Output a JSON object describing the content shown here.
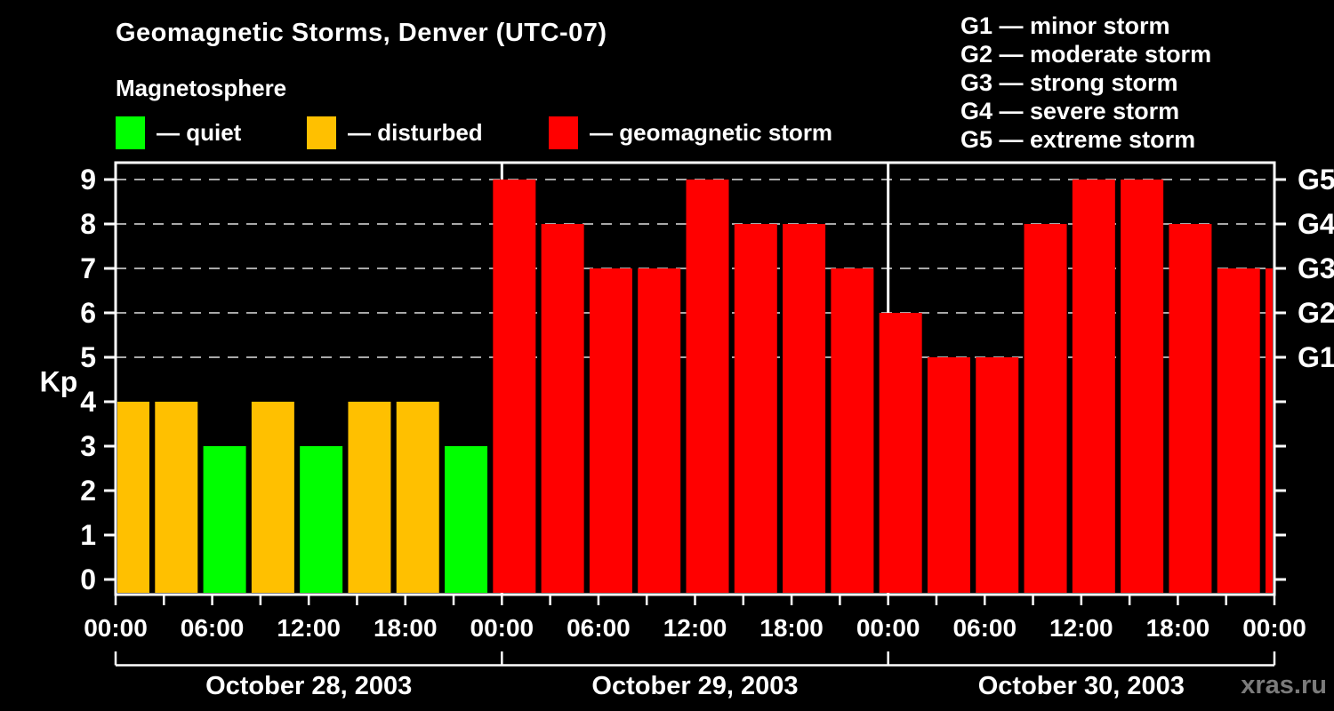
{
  "title": "Geomagnetic Storms, Denver (UTC-07)",
  "subtitle": "Magnetosphere",
  "kp_legend": {
    "items": [
      {
        "name": "quiet",
        "label": "— quiet",
        "color": "#00FF00"
      },
      {
        "name": "disturbed",
        "label": "— disturbed",
        "color": "#FFC000"
      },
      {
        "name": "storm",
        "label": "— geomagnetic storm",
        "color": "#FF0000"
      }
    ]
  },
  "g_scale_legend": {
    "lines": [
      "G1 — minor storm",
      "G2 — moderate storm",
      "G3 — strong storm",
      "G4 — severe storm",
      "G5 — extreme storm"
    ]
  },
  "watermark": "xras.ru",
  "chart_data": {
    "type": "bar",
    "title": "Geomagnetic Storms, Denver (UTC-07)",
    "subtitle": "Magnetosphere",
    "ylabel": "Kp",
    "ylim": [
      0,
      9
    ],
    "yticks": [
      0,
      1,
      2,
      3,
      4,
      5,
      6,
      7,
      8,
      9
    ],
    "gridline_levels": [
      5,
      6,
      7,
      8,
      9
    ],
    "grid": "dashed, horizontal only",
    "right_axis": {
      "labels": [
        "G1",
        "G2",
        "G3",
        "G4",
        "G5"
      ],
      "levels": [
        5,
        6,
        7,
        8,
        9
      ]
    },
    "x_tick_labels": [
      "00:00",
      "06:00",
      "12:00",
      "18:00",
      "00:00",
      "06:00",
      "12:00",
      "18:00",
      "00:00",
      "06:00",
      "12:00",
      "18:00",
      "00:00"
    ],
    "minor_tick_hours": 3,
    "bars_per_day": 8,
    "bar_interval_hours": 3,
    "days": [
      {
        "date": "October 28, 2003",
        "kp": [
          4,
          4,
          3,
          4,
          3,
          4,
          4,
          3
        ]
      },
      {
        "date": "October 29, 2003",
        "kp": [
          9,
          8,
          7,
          7,
          9,
          8,
          8,
          7
        ]
      },
      {
        "date": "October 30, 2003",
        "kp": [
          6,
          5,
          5,
          8,
          9,
          9,
          8,
          7
        ]
      }
    ],
    "partial_last_bar": {
      "time": "00:00",
      "kp": 7
    },
    "color_rule": {
      "quiet_kp_max": 3,
      "disturbed_kp": 4,
      "storm_kp_min": 5
    },
    "colors": {
      "quiet": "#00FF00",
      "disturbed": "#FFC000",
      "storm": "#FF0000",
      "background": "#000000",
      "frame": "#FFFFFF",
      "gridline": "#A8A8A8",
      "watermark": "#7B7B7B"
    },
    "legend_position": "top-left (colors), top-right (G-scale)"
  }
}
